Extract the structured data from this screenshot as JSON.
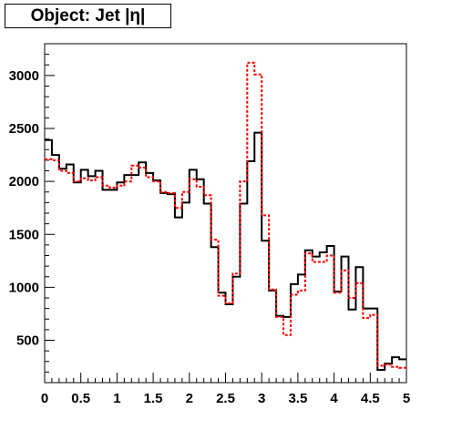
{
  "title_box": {
    "title": "Object: Jet |η|"
  },
  "chart_data": {
    "type": "histogram",
    "title": "Object: Jet |η|",
    "xlabel": "",
    "ylabel": "",
    "xlim": [
      0,
      5
    ],
    "ylim": [
      100,
      3300
    ],
    "xticks": [
      0,
      0.5,
      1,
      1.5,
      2,
      2.5,
      3,
      3.5,
      4,
      4.5,
      5
    ],
    "xtick_labels": [
      "0",
      "0.5",
      "1",
      "1.5",
      "2",
      "2.5",
      "3",
      "3.5",
      "4",
      "4.5",
      "5"
    ],
    "yticks": [
      500,
      1000,
      1500,
      2000,
      2500,
      3000
    ],
    "ytick_labels": [
      "500",
      "1000",
      "1500",
      "2000",
      "2500",
      "3000"
    ],
    "grid": false,
    "legend": "none",
    "bin_edges": [
      0,
      0.1,
      0.2,
      0.3,
      0.4,
      0.5,
      0.6,
      0.7,
      0.8,
      0.9,
      1.0,
      1.1,
      1.2,
      1.3,
      1.4,
      1.5,
      1.6,
      1.7,
      1.8,
      1.9,
      2.0,
      2.1,
      2.2,
      2.3,
      2.4,
      2.5,
      2.6,
      2.7,
      2.8,
      2.9,
      3.0,
      3.1,
      3.2,
      3.3,
      3.4,
      3.5,
      3.6,
      3.7,
      3.8,
      3.9,
      4.0,
      4.1,
      4.2,
      4.3,
      4.4,
      4.5,
      4.6,
      4.7,
      4.8,
      4.9,
      5.0
    ],
    "series": [
      {
        "color": "#000000",
        "style": "solid",
        "values": [
          2390,
          2250,
          2120,
          2160,
          1990,
          2110,
          2050,
          2100,
          1920,
          1920,
          1990,
          2060,
          2060,
          2180,
          2080,
          2010,
          1890,
          1880,
          1660,
          1800,
          2110,
          2020,
          1790,
          1380,
          950,
          840,
          1100,
          1790,
          2190,
          2460,
          1440,
          970,
          730,
          720,
          1030,
          1120,
          1350,
          1290,
          1330,
          1390,
          960,
          1290,
          790,
          1190,
          800,
          800,
          220,
          280,
          340,
          320
        ]
      },
      {
        "color": "#ff0000",
        "style": "dashed",
        "values": [
          2210,
          2200,
          2100,
          2080,
          2000,
          2030,
          2010,
          2040,
          1960,
          1940,
          1960,
          2000,
          2150,
          2130,
          2040,
          2000,
          1900,
          1890,
          1750,
          1900,
          2020,
          1950,
          1870,
          1450,
          920,
          850,
          1130,
          2000,
          3120,
          3010,
          1680,
          980,
          720,
          550,
          930,
          970,
          1320,
          1240,
          1240,
          1300,
          950,
          1160,
          900,
          1040,
          710,
          740,
          260,
          270,
          250,
          240
        ]
      }
    ]
  }
}
